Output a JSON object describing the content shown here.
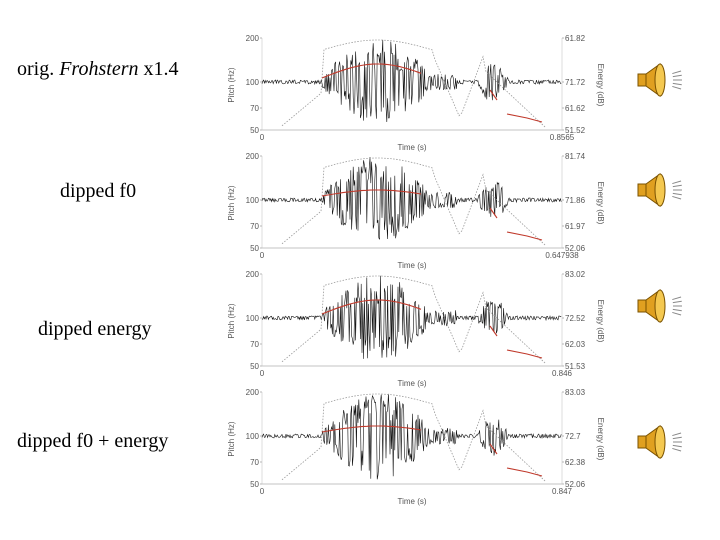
{
  "rows": [
    {
      "label_pre": "orig. ",
      "label_italic": "Frohstern",
      "label_post": " x1.4",
      "pitch_ticks": [
        "200",
        "100",
        "70",
        "50"
      ],
      "energy_ticks": [
        "61.82",
        "71.72",
        "61.62",
        "51.52"
      ],
      "x_start": "0",
      "x_end": "0.8565",
      "x_label": "Time (s)",
      "pitch_label": "Pitch (Hz)",
      "energy_label": "Energy (dB)",
      "speaker_icon": "speaker-icon"
    },
    {
      "label_pre": "dipped f0",
      "label_italic": "",
      "label_post": "",
      "pitch_ticks": [
        "200",
        "100",
        "70",
        "50"
      ],
      "energy_ticks": [
        "81.74",
        "71.86",
        "61.97",
        "52.06"
      ],
      "x_start": "0",
      "x_end": "0.647938",
      "x_label": "Time (s)",
      "pitch_label": "Pitch (Hz)",
      "energy_label": "Energy (dB)",
      "speaker_icon": "speaker-icon"
    },
    {
      "label_pre": "dipped energy",
      "label_italic": "",
      "label_post": "",
      "pitch_ticks": [
        "200",
        "100",
        "70",
        "50"
      ],
      "energy_ticks": [
        "83.02",
        "72.52",
        "62.03",
        "51.53"
      ],
      "x_start": "0",
      "x_end": "0.846",
      "x_label": "Time (s)",
      "pitch_label": "Pitch (Hz)",
      "energy_label": "Energy (dB)",
      "speaker_icon": "speaker-icon"
    },
    {
      "label_pre": "dipped f0 + energy",
      "label_italic": "",
      "label_post": "",
      "pitch_ticks": [
        "200",
        "100",
        "70",
        "50"
      ],
      "energy_ticks": [
        "83.03",
        "72.7",
        "62.38",
        "52.06"
      ],
      "x_start": "0",
      "x_end": "0.847",
      "x_label": "Time (s)",
      "pitch_label": "Pitch (Hz)",
      "energy_label": "Energy (dB)",
      "speaker_icon": "speaker-icon"
    }
  ],
  "colors": {
    "waveform": "#111111",
    "pitch": "#c0392b",
    "energy": "#999999",
    "speaker_fill": "#e0a020",
    "speaker_stroke": "#7a5200"
  }
}
